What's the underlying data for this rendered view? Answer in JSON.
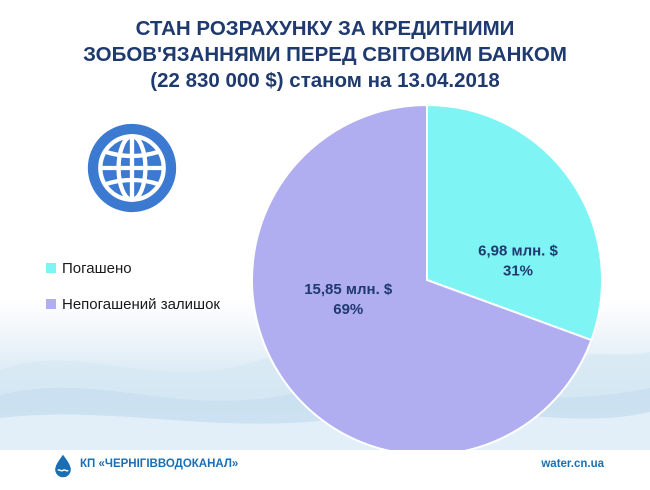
{
  "title": {
    "line1": "СТАН РОЗРАХУНКУ ЗА КРЕДИТНИМИ",
    "line2": "ЗОБОВ'ЯЗАННЯМИ ПЕРЕД СВІТОВИМ БАНКОМ",
    "line3": "(22 830 000 $) станом на 13.04.2018"
  },
  "chart_data": {
    "type": "pie",
    "title": "СТАН РОЗРАХУНКУ ЗА КРЕДИТНИМИ ЗОБОВ'ЯЗАННЯМИ ПЕРЕД СВІТОВИМ БАНКОМ (22 830 000 $) станом на 13.04.2018",
    "legend_position": "left",
    "slices": [
      {
        "name": "Погашено",
        "value": 6.98,
        "percent": 31,
        "value_label": "6,98 млн. $",
        "percent_label": "31%",
        "color": "#7ef4f4"
      },
      {
        "name": "Непогашений залишок",
        "value": 15.85,
        "percent": 69,
        "value_label": "15,85 млн. $",
        "percent_label": "69%",
        "color": "#b0aef0"
      }
    ]
  },
  "colors": {
    "title": "#1f3a6e",
    "globe": "#3b7ad0",
    "brand": "#1a6fb4"
  },
  "logo_icon": "world-bank-globe-icon",
  "footer": {
    "company": "КП «ЧЕРНІГІВВОДОКАНАЛ»",
    "website": "water.cn.ua"
  }
}
